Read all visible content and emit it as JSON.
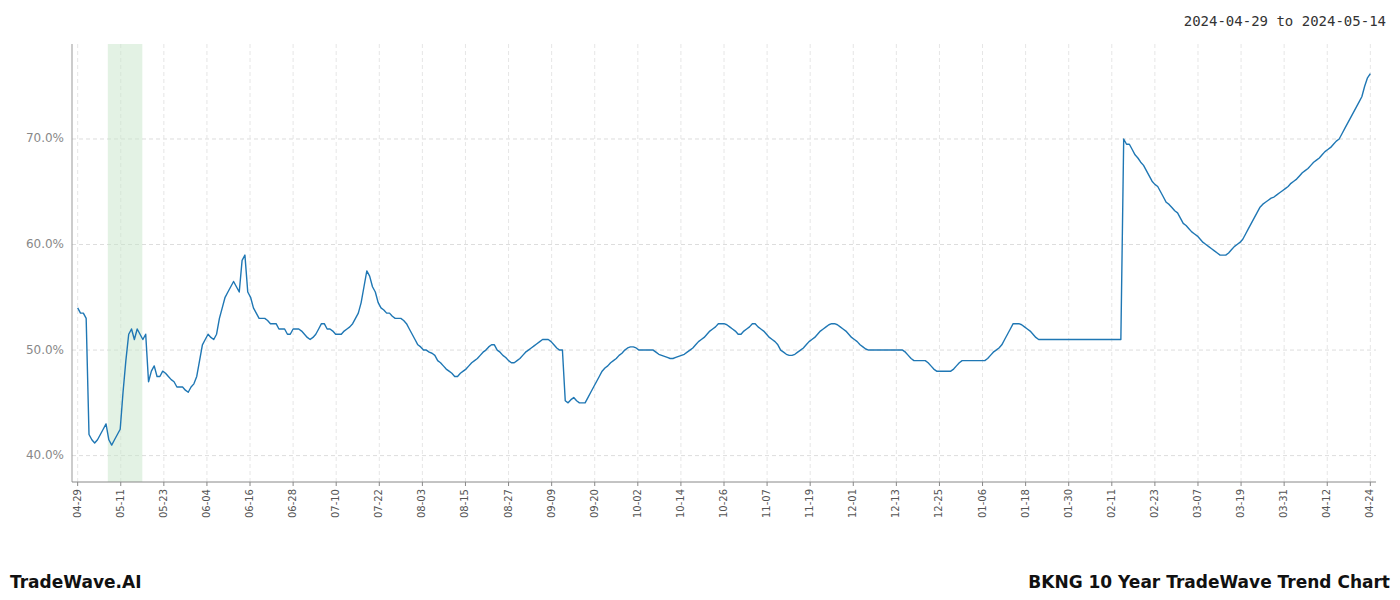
{
  "chart_data": {
    "type": "line",
    "title": "BKNG 10 Year TradeWave Trend Chart",
    "subtitle": "2024-04-29 to 2024-05-14",
    "annotations": [
      "TradeWave.AI"
    ],
    "color": "#1f77b4",
    "grid": true,
    "highlight": {
      "x": [
        10.64,
        22.8
      ],
      "color": "#c8e6c9"
    },
    "xlim": [
      -2,
      458
    ],
    "xticks": [
      {
        "value": 0,
        "label": "04-29"
      },
      {
        "value": 15.2,
        "label": "05-11"
      },
      {
        "value": 30.4,
        "label": "05-23"
      },
      {
        "value": 45.6,
        "label": "06-04"
      },
      {
        "value": 60.8,
        "label": "06-16"
      },
      {
        "value": 76,
        "label": "06-28"
      },
      {
        "value": 91.2,
        "label": "07-10"
      },
      {
        "value": 106.4,
        "label": "07-22"
      },
      {
        "value": 121.6,
        "label": "08-03"
      },
      {
        "value": 136.8,
        "label": "08-15"
      },
      {
        "value": 152,
        "label": "08-27"
      },
      {
        "value": 167.2,
        "label": "09-09"
      },
      {
        "value": 182.4,
        "label": "09-20"
      },
      {
        "value": 197.6,
        "label": "10-02"
      },
      {
        "value": 212.8,
        "label": "10-14"
      },
      {
        "value": 228,
        "label": "10-26"
      },
      {
        "value": 243.2,
        "label": "11-07"
      },
      {
        "value": 258.4,
        "label": "11-19"
      },
      {
        "value": 273.6,
        "label": "12-01"
      },
      {
        "value": 288.8,
        "label": "12-13"
      },
      {
        "value": 304,
        "label": "12-25"
      },
      {
        "value": 319.2,
        "label": "01-06"
      },
      {
        "value": 334.4,
        "label": "01-18"
      },
      {
        "value": 349.6,
        "label": "01-30"
      },
      {
        "value": 364.8,
        "label": "02-11"
      },
      {
        "value": 380,
        "label": "02-23"
      },
      {
        "value": 395.2,
        "label": "03-07"
      },
      {
        "value": 410.4,
        "label": "03-19"
      },
      {
        "value": 425.6,
        "label": "03-31"
      },
      {
        "value": 440.8,
        "label": "04-12"
      },
      {
        "value": 456,
        "label": "04-24"
      }
    ],
    "ylim": [
      0.375,
      0.79
    ],
    "yticks": [
      {
        "value": 0.4,
        "label": "40.0%"
      },
      {
        "value": 0.5,
        "label": "50.0%"
      },
      {
        "value": 0.6,
        "label": "60.0%"
      },
      {
        "value": 0.7,
        "label": "70.0%"
      }
    ],
    "values": [
      0.54,
      0.535,
      0.535,
      0.53,
      0.42,
      0.415,
      0.412,
      0.415,
      0.42,
      0.425,
      0.43,
      0.415,
      0.41,
      0.415,
      0.42,
      0.425,
      0.46,
      0.49,
      0.515,
      0.52,
      0.51,
      0.52,
      0.515,
      0.51,
      0.515,
      0.47,
      0.48,
      0.485,
      0.475,
      0.475,
      0.48,
      0.478,
      0.475,
      0.472,
      0.47,
      0.465,
      0.465,
      0.465,
      0.462,
      0.46,
      0.465,
      0.468,
      0.475,
      0.49,
      0.505,
      0.51,
      0.515,
      0.512,
      0.51,
      0.515,
      0.53,
      0.54,
      0.55,
      0.555,
      0.56,
      0.565,
      0.56,
      0.555,
      0.585,
      0.59,
      0.555,
      0.55,
      0.54,
      0.535,
      0.53,
      0.53,
      0.53,
      0.528,
      0.525,
      0.525,
      0.525,
      0.52,
      0.52,
      0.52,
      0.515,
      0.515,
      0.52,
      0.52,
      0.52,
      0.518,
      0.515,
      0.512,
      0.51,
      0.512,
      0.515,
      0.52,
      0.525,
      0.525,
      0.52,
      0.52,
      0.518,
      0.515,
      0.515,
      0.515,
      0.518,
      0.52,
      0.522,
      0.525,
      0.53,
      0.535,
      0.545,
      0.56,
      0.575,
      0.57,
      0.56,
      0.555,
      0.545,
      0.54,
      0.538,
      0.535,
      0.535,
      0.532,
      0.53,
      0.53,
      0.53,
      0.528,
      0.525,
      0.52,
      0.515,
      0.51,
      0.505,
      0.503,
      0.5,
      0.5,
      0.498,
      0.497,
      0.495,
      0.49,
      0.488,
      0.485,
      0.482,
      0.48,
      0.478,
      0.475,
      0.475,
      0.478,
      0.48,
      0.482,
      0.485,
      0.488,
      0.49,
      0.492,
      0.495,
      0.498,
      0.5,
      0.503,
      0.505,
      0.505,
      0.5,
      0.498,
      0.495,
      0.493,
      0.49,
      0.488,
      0.488,
      0.49,
      0.492,
      0.495,
      0.498,
      0.5,
      0.502,
      0.504,
      0.506,
      0.508,
      0.51,
      0.51,
      0.51,
      0.508,
      0.505,
      0.502,
      0.5,
      0.5,
      0.452,
      0.45,
      0.453,
      0.455,
      0.452,
      0.45,
      0.45,
      0.45,
      0.455,
      0.46,
      0.465,
      0.47,
      0.475,
      0.48,
      0.483,
      0.485,
      0.488,
      0.49,
      0.492,
      0.495,
      0.497,
      0.5,
      0.502,
      0.503,
      0.503,
      0.502,
      0.5,
      0.5,
      0.5,
      0.5,
      0.5,
      0.5,
      0.498,
      0.496,
      0.495,
      0.494,
      0.493,
      0.492,
      0.492,
      0.493,
      0.494,
      0.495,
      0.496,
      0.498,
      0.5,
      0.502,
      0.505,
      0.508,
      0.51,
      0.512,
      0.515,
      0.518,
      0.52,
      0.522,
      0.525,
      0.525,
      0.525,
      0.524,
      0.522,
      0.52,
      0.518,
      0.515,
      0.515,
      0.518,
      0.52,
      0.522,
      0.525,
      0.525,
      0.522,
      0.52,
      0.518,
      0.515,
      0.512,
      0.51,
      0.508,
      0.505,
      0.5,
      0.498,
      0.496,
      0.495,
      0.495,
      0.496,
      0.498,
      0.5,
      0.502,
      0.505,
      0.508,
      0.51,
      0.512,
      0.515,
      0.518,
      0.52,
      0.522,
      0.524,
      0.525,
      0.525,
      0.524,
      0.522,
      0.52,
      0.518,
      0.515,
      0.512,
      0.51,
      0.508,
      0.505,
      0.503,
      0.501,
      0.5,
      0.5,
      0.5,
      0.5,
      0.5,
      0.5,
      0.5,
      0.5,
      0.5,
      0.5,
      0.5,
      0.5,
      0.5,
      0.498,
      0.495,
      0.492,
      0.49,
      0.49,
      0.49,
      0.49,
      0.49,
      0.488,
      0.485,
      0.482,
      0.48,
      0.48,
      0.48,
      0.48,
      0.48,
      0.48,
      0.482,
      0.485,
      0.488,
      0.49,
      0.49,
      0.49,
      0.49,
      0.49,
      0.49,
      0.49,
      0.49,
      0.49,
      0.492,
      0.495,
      0.498,
      0.5,
      0.502,
      0.505,
      0.51,
      0.515,
      0.52,
      0.525,
      0.525,
      0.525,
      0.524,
      0.522,
      0.52,
      0.518,
      0.515,
      0.512,
      0.51,
      0.51,
      0.51,
      0.51,
      0.51,
      0.51,
      0.51,
      0.51,
      0.51,
      0.51,
      0.51,
      0.51,
      0.51,
      0.51,
      0.51,
      0.51,
      0.51,
      0.51,
      0.51,
      0.51,
      0.51,
      0.51,
      0.51,
      0.51,
      0.51,
      0.51,
      0.51,
      0.51,
      0.51,
      0.51,
      0.7,
      0.695,
      0.695,
      0.69,
      0.685,
      0.682,
      0.678,
      0.675,
      0.67,
      0.665,
      0.66,
      0.657,
      0.655,
      0.65,
      0.645,
      0.64,
      0.638,
      0.635,
      0.632,
      0.63,
      0.625,
      0.62,
      0.618,
      0.615,
      0.612,
      0.61,
      0.608,
      0.605,
      0.602,
      0.6,
      0.598,
      0.596,
      0.594,
      0.592,
      0.59,
      0.59,
      0.59,
      0.592,
      0.595,
      0.598,
      0.6,
      0.602,
      0.605,
      0.61,
      0.615,
      0.62,
      0.625,
      0.63,
      0.635,
      0.638,
      0.64,
      0.642,
      0.644,
      0.645,
      0.647,
      0.649,
      0.651,
      0.653,
      0.655,
      0.658,
      0.66,
      0.662,
      0.665,
      0.668,
      0.67,
      0.672,
      0.675,
      0.678,
      0.68,
      0.682,
      0.685,
      0.688,
      0.69,
      0.692,
      0.695,
      0.698,
      0.7,
      0.705,
      0.71,
      0.715,
      0.72,
      0.725,
      0.73,
      0.735,
      0.74,
      0.75,
      0.758,
      0.762
    ]
  }
}
